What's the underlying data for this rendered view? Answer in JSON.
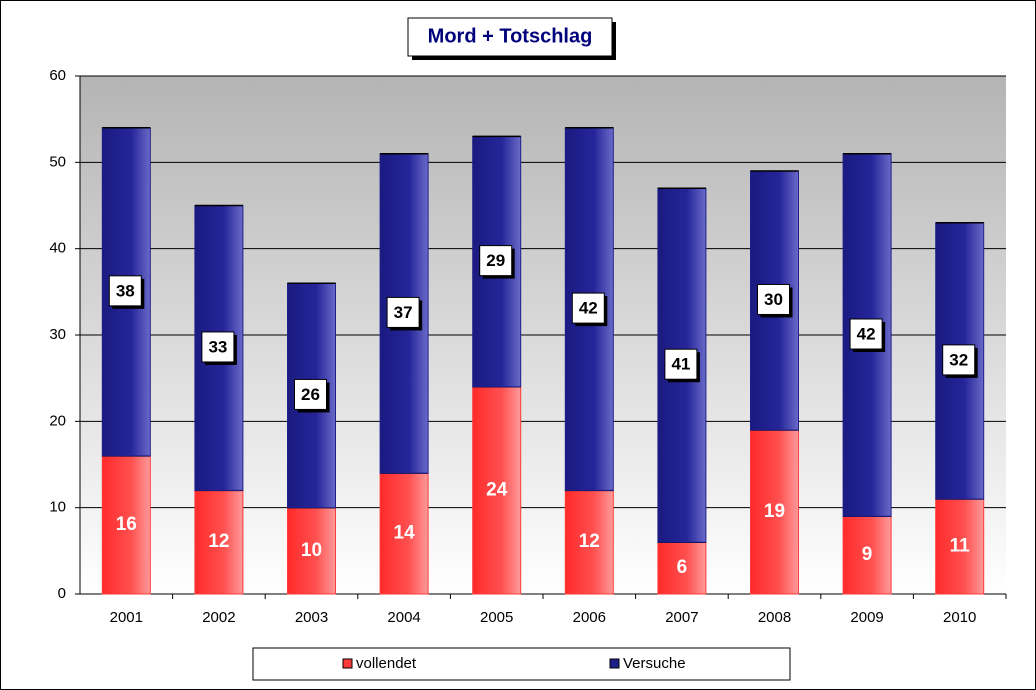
{
  "chart_data": {
    "type": "stacked-bar",
    "title": "Mord + Totschlag",
    "categories": [
      "2001",
      "2002",
      "2003",
      "2004",
      "2005",
      "2006",
      "2007",
      "2008",
      "2009",
      "2010"
    ],
    "series": [
      {
        "name": "vollendet",
        "color": "#ff3b3b",
        "values": [
          16,
          12,
          10,
          14,
          24,
          12,
          6,
          19,
          9,
          11
        ]
      },
      {
        "name": "Versuche",
        "color": "#1f1f8a",
        "values": [
          38,
          33,
          26,
          37,
          29,
          42,
          41,
          30,
          42,
          32
        ]
      }
    ],
    "ylim": [
      0,
      60
    ],
    "yticks": [
      0,
      10,
      20,
      30,
      40,
      50,
      60
    ],
    "grid": true,
    "legend": "bottom"
  }
}
